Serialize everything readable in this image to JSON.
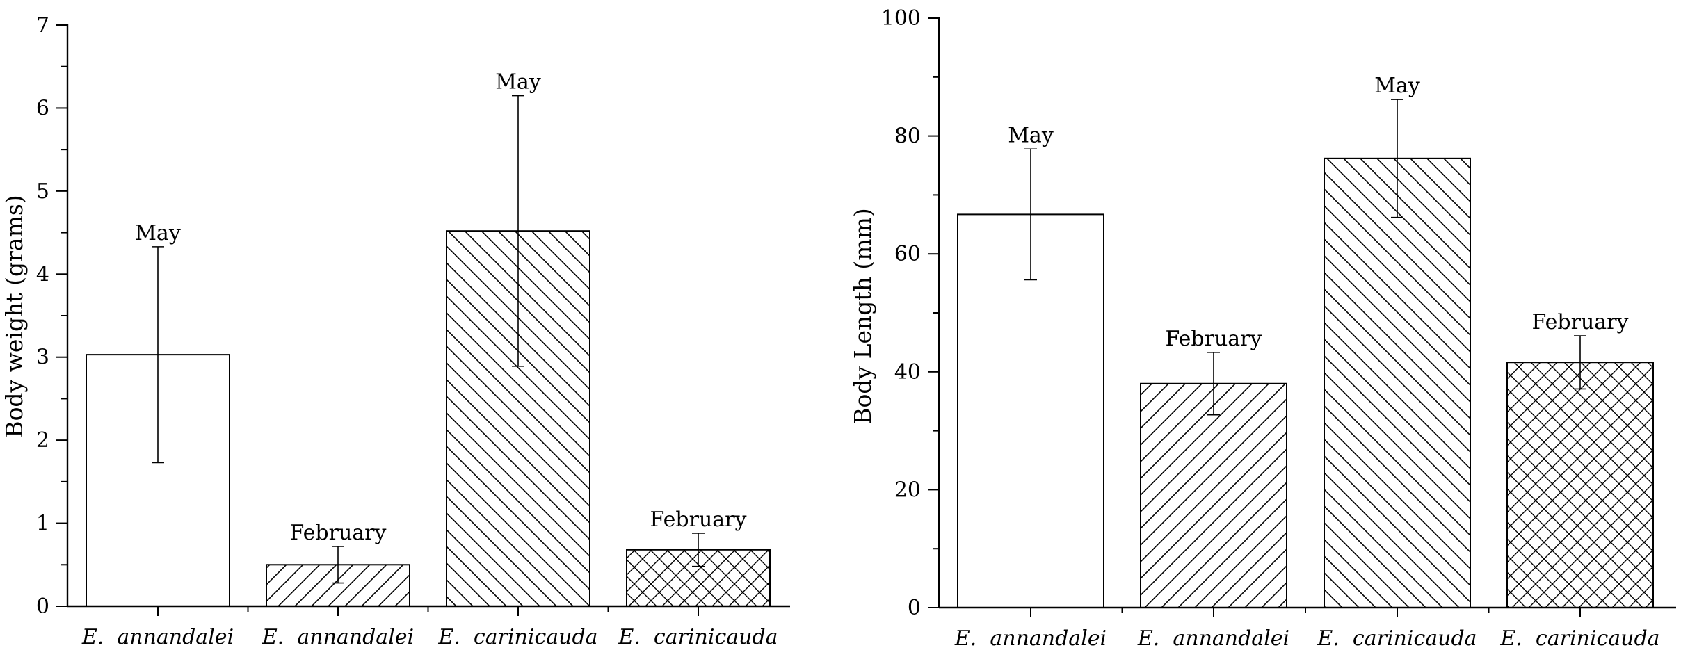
{
  "chart_data": [
    {
      "type": "bar",
      "title": "",
      "xlabel": "",
      "ylabel": "Body weight (grams)",
      "ylim": [
        0,
        7
      ],
      "yticks": [
        0,
        1,
        2,
        3,
        4,
        5,
        6,
        7
      ],
      "categories": [
        "E. annandalei",
        "E. annandalei",
        "E. carinicauda",
        "E. carinicauda"
      ],
      "category_prefix": [
        "E.",
        "E.",
        "E.",
        "E."
      ],
      "category_species": [
        "annandalei",
        "annandalei",
        "carinicauda",
        "carinicauda"
      ],
      "values": [
        3.03,
        0.5,
        4.52,
        0.68
      ],
      "error": [
        1.3,
        0.22,
        1.63,
        0.2
      ],
      "bar_labels": [
        "May",
        "February",
        "May",
        "February"
      ],
      "patterns": [
        "none",
        "forward-diagonal",
        "backward-diagonal",
        "crosshatch"
      ],
      "grid": false
    },
    {
      "type": "bar",
      "title": "",
      "xlabel": "",
      "ylabel": "Body Length (mm)",
      "ylim": [
        0,
        100
      ],
      "yticks": [
        0,
        20,
        40,
        60,
        80,
        100
      ],
      "categories": [
        "E. annandalei",
        "E. annandalei",
        "E. carinicauda",
        "E. carinicauda"
      ],
      "category_prefix": [
        "E.",
        "E.",
        "E.",
        "E."
      ],
      "category_species": [
        "annandalei",
        "annandalei",
        "carinicauda",
        "carinicauda"
      ],
      "values": [
        66.7,
        38,
        76.2,
        41.6
      ],
      "error": [
        11.1,
        5.3,
        10,
        4.5
      ],
      "bar_labels": [
        "May",
        "February",
        "May",
        "February"
      ],
      "patterns": [
        "none",
        "forward-diagonal",
        "backward-diagonal",
        "crosshatch"
      ],
      "grid": false
    }
  ]
}
